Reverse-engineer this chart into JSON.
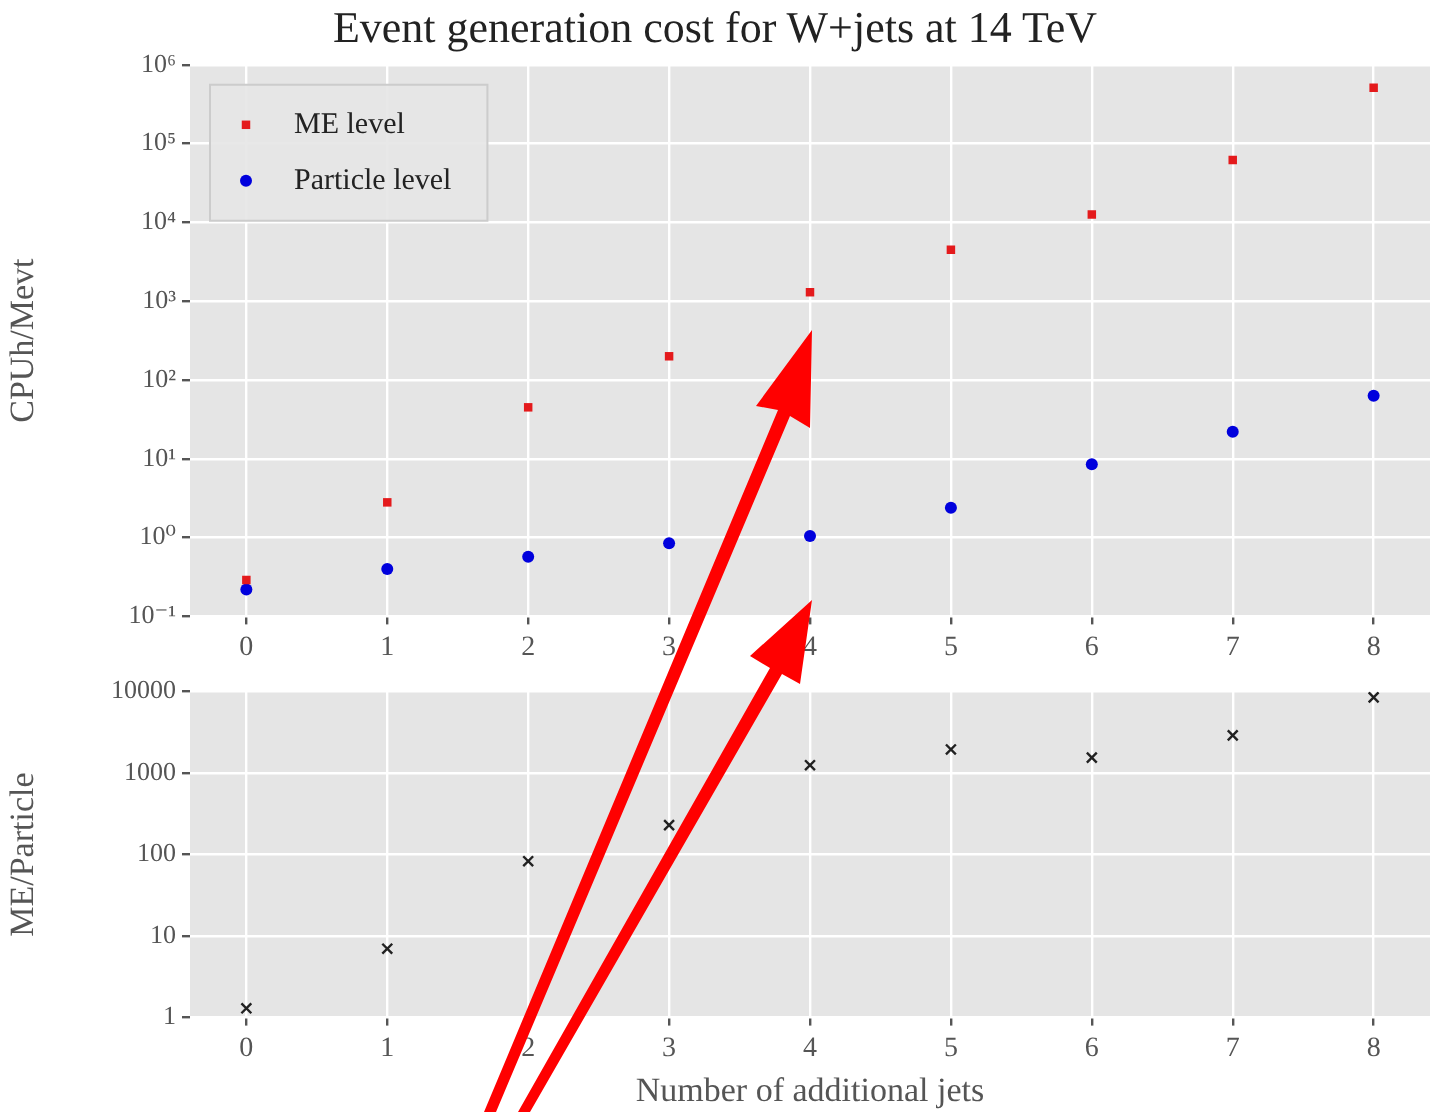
{
  "chart_data": [
    {
      "type": "scatter",
      "title": "Event generation cost for W+jets at 14 TeV",
      "ylabel": "CPUh/Mevt",
      "log": "y",
      "grid": true,
      "legend": "top left",
      "x": [
        0,
        1,
        2,
        3,
        4,
        5,
        6,
        7,
        8
      ],
      "xlim": [
        -0.4,
        8.4
      ],
      "xticks": [
        0,
        1,
        2,
        3,
        4,
        5,
        6,
        7,
        8
      ],
      "ylim": [
        0.1,
        1000000
      ],
      "yticks": [
        {
          "value": 0.1,
          "label": "10⁻¹"
        },
        {
          "value": 1,
          "label": "10⁰"
        },
        {
          "value": 10,
          "label": "10¹"
        },
        {
          "value": 100,
          "label": "10²"
        },
        {
          "value": 1000,
          "label": "10³"
        },
        {
          "value": 10000,
          "label": "10⁴"
        },
        {
          "value": 100000,
          "label": "10⁵"
        },
        {
          "value": 1000000,
          "label": "10⁶"
        }
      ],
      "series": [
        {
          "name": "ME level",
          "color": "#e41a1c",
          "marker": "square",
          "values": [
            0.29,
            2.8,
            45,
            200,
            1300,
            4500,
            12600,
            62000,
            510000
          ]
        },
        {
          "name": "Particle level",
          "color": "#0000dd",
          "marker": "circle",
          "values": [
            0.22,
            0.4,
            0.57,
            0.85,
            1.05,
            2.4,
            8.5,
            22,
            63
          ]
        }
      ]
    },
    {
      "type": "scatter",
      "xlabel": "Number of additional jets",
      "ylabel": "ME/Particle",
      "log": "y",
      "grid": true,
      "marker": "cross",
      "x": [
        0,
        1,
        2,
        3,
        4,
        5,
        6,
        7,
        8
      ],
      "xlim": [
        -0.4,
        8.4
      ],
      "xticks": [
        0,
        1,
        2,
        3,
        4,
        5,
        6,
        7,
        8
      ],
      "ylim": [
        1,
        10000
      ],
      "yticks": [
        1,
        10,
        100,
        1000,
        10000
      ],
      "series": [
        {
          "color": "#222222",
          "values": [
            1.3,
            7,
            83,
            230,
            1250,
            1950,
            1550,
            2900,
            8500
          ]
        }
      ]
    }
  ]
}
